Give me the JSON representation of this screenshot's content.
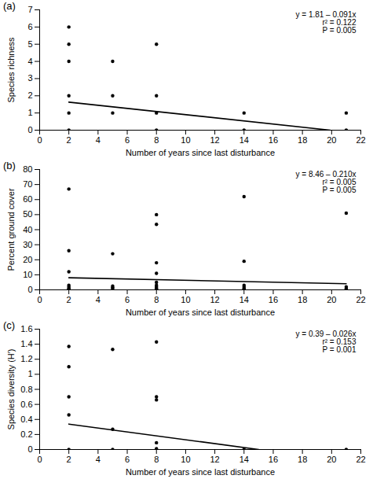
{
  "chart_data": [
    {
      "type": "scatter",
      "title": "(a)",
      "x_label": "Number of years since last disturbance",
      "y_label": "Species richness",
      "xlim": [
        0,
        22
      ],
      "xticks": [
        0,
        2,
        4,
        6,
        8,
        10,
        12,
        14,
        16,
        18,
        20,
        22
      ],
      "ylim": [
        0,
        7
      ],
      "yticks": [
        0,
        1,
        2,
        3,
        4,
        5,
        6,
        7
      ],
      "annotations": [
        "y = 1.81 – 0.091x",
        "r² = 0.122",
        "P = 0.005"
      ],
      "series": [
        {
          "type": "scatter",
          "color": "#000000",
          "marker": "circle",
          "x": [
            2,
            2,
            2,
            2,
            2,
            2,
            5,
            5,
            5,
            8,
            8,
            8,
            8,
            14,
            14,
            21,
            21
          ],
          "values": [
            6,
            5,
            4,
            2,
            1,
            0,
            4,
            2,
            1,
            5,
            2,
            1,
            0,
            1,
            0,
            1,
            0
          ]
        },
        {
          "type": "line",
          "color": "#000000",
          "line_style": "solid",
          "x": [
            2,
            19.9
          ],
          "values": [
            1.63,
            0
          ]
        }
      ]
    },
    {
      "type": "scatter",
      "title": "(b)",
      "x_label": "Number of years since last disturbance",
      "y_label": "Percent ground cover",
      "xlim": [
        0,
        22
      ],
      "xticks": [
        0,
        2,
        4,
        6,
        8,
        10,
        12,
        14,
        16,
        18,
        20,
        22
      ],
      "ylim": [
        0,
        80
      ],
      "yticks": [
        0,
        10,
        20,
        30,
        40,
        50,
        60,
        70,
        80
      ],
      "annotations": [
        "y = 8.46 – 0.210x",
        "r² = 0.005",
        "P = 0.005"
      ],
      "series": [
        {
          "type": "scatter",
          "color": "#000000",
          "marker": "circle",
          "x": [
            2,
            2,
            2,
            2,
            2,
            2,
            2,
            2,
            5,
            5,
            5,
            5,
            8,
            8,
            8,
            8,
            8,
            8,
            8,
            8,
            8,
            14,
            14,
            14,
            14,
            14,
            14,
            21,
            21,
            21,
            21
          ],
          "values": [
            67,
            26,
            12,
            3,
            2,
            1,
            0.5,
            0,
            24,
            2.5,
            1.5,
            1,
            50,
            43.5,
            18,
            11,
            5,
            3,
            2,
            1,
            0.5,
            62,
            19,
            3,
            2,
            1,
            0.5,
            51,
            2,
            1,
            0.5
          ]
        },
        {
          "type": "line",
          "color": "#000000",
          "line_style": "solid",
          "x": [
            2,
            21
          ],
          "values": [
            8.04,
            4.05
          ]
        }
      ]
    },
    {
      "type": "scatter",
      "title": "(c)",
      "x_label": "Number of years since last disturbance",
      "y_label": "Species diversity (H′)",
      "xlim": [
        0,
        22
      ],
      "xticks": [
        0,
        2,
        4,
        6,
        8,
        10,
        12,
        14,
        16,
        18,
        20,
        22
      ],
      "ylim": [
        0,
        1.6
      ],
      "yticks": [
        0,
        0.2,
        0.4,
        0.6,
        0.8,
        1,
        1.2,
        1.4,
        1.6
      ],
      "annotations": [
        "y = 0.39 – 0.026x",
        "r² = 0.153",
        "P = 0.001"
      ],
      "series": [
        {
          "type": "scatter",
          "color": "#000000",
          "marker": "circle",
          "x": [
            2,
            2,
            2,
            2,
            2,
            5,
            5,
            5,
            8,
            8,
            8,
            8,
            8,
            14,
            21
          ],
          "values": [
            1.37,
            1.1,
            0.7,
            0.46,
            0,
            1.33,
            0.27,
            0,
            1.43,
            0.7,
            0.66,
            0.09,
            0.01,
            0,
            0
          ]
        },
        {
          "type": "line",
          "color": "#000000",
          "line_style": "solid",
          "x": [
            2,
            15
          ],
          "values": [
            0.338,
            0
          ]
        }
      ]
    }
  ]
}
